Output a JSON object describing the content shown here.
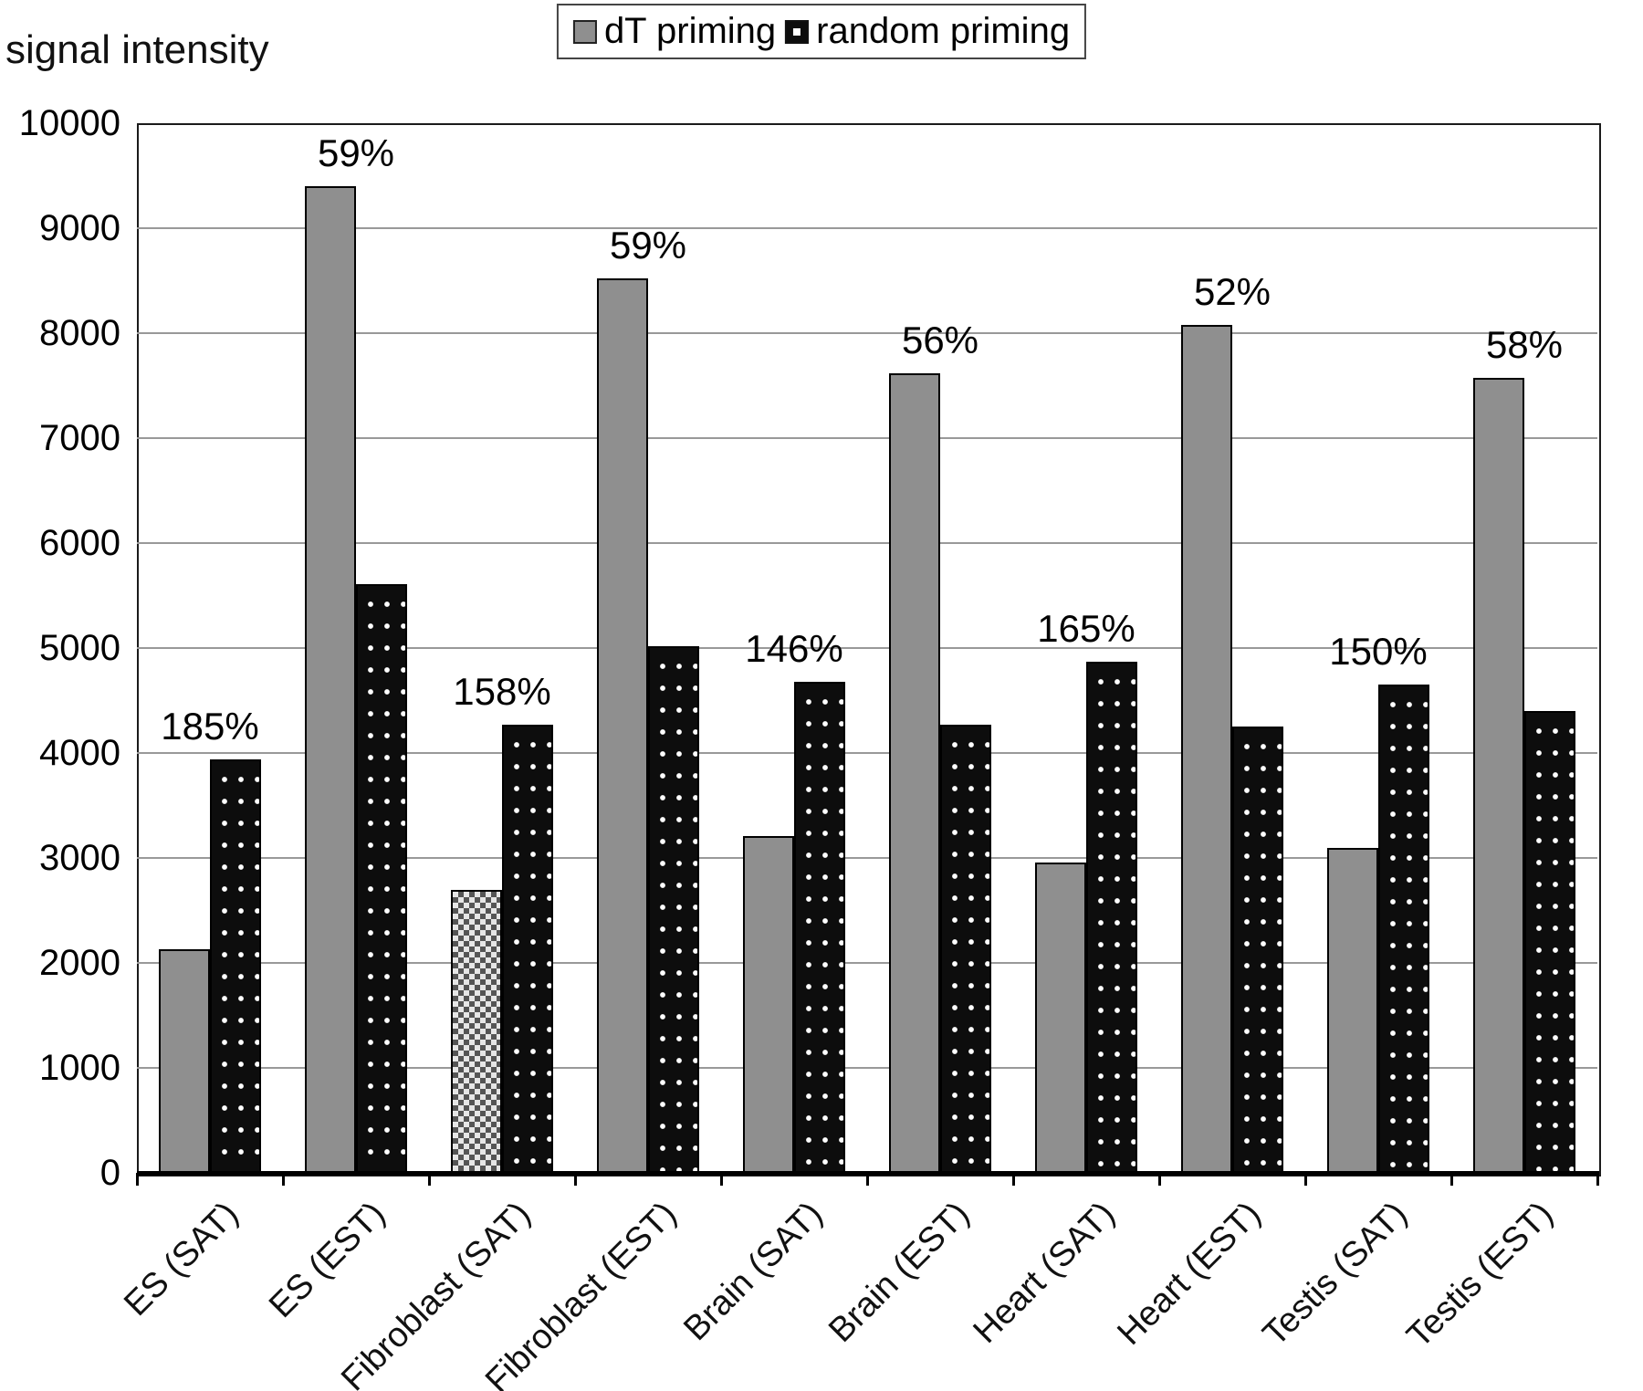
{
  "legend": {
    "items": [
      {
        "label": "dT priming",
        "swatch": "gray-square-icon"
      },
      {
        "label": "random priming",
        "swatch": "black-dotted-square-icon"
      }
    ]
  },
  "chart_data": {
    "type": "bar",
    "title": "",
    "ylabel": "signal intensity",
    "xlabel": "",
    "ylim": [
      0,
      10000
    ],
    "yticks": [
      0,
      1000,
      2000,
      3000,
      4000,
      5000,
      6000,
      7000,
      8000,
      9000,
      10000
    ],
    "grid": true,
    "legend_position": "top-center",
    "categories": [
      "ES (SAT)",
      "ES (EST)",
      "Fibroblast (SAT)",
      "Fibroblast (EST)",
      "Brain (SAT)",
      "Brain (EST)",
      "Heart (SAT)",
      "Heart (EST)",
      "Testis (SAT)",
      "Testis (EST)"
    ],
    "series": [
      {
        "name": "dT priming",
        "values": [
          2130,
          9400,
          2700,
          8520,
          3210,
          7620,
          2960,
          8080,
          3100,
          7570
        ]
      },
      {
        "name": "random priming",
        "values": [
          3940,
          5610,
          4270,
          5020,
          4680,
          4270,
          4870,
          4250,
          4650,
          4400
        ]
      }
    ],
    "percent_labels": [
      "185%",
      "59%",
      "158%",
      "59%",
      "146%",
      "56%",
      "165%",
      "52%",
      "150%",
      "58%"
    ],
    "special_pattern": {
      "category_index": 2,
      "series": "dT priming",
      "style": "checkerboard"
    },
    "colors": {
      "dt_bar": "#8f8f8f",
      "random_bar": "#0d0d0d",
      "grid": "#999999",
      "axis": "#000000",
      "text": "#000000"
    }
  }
}
